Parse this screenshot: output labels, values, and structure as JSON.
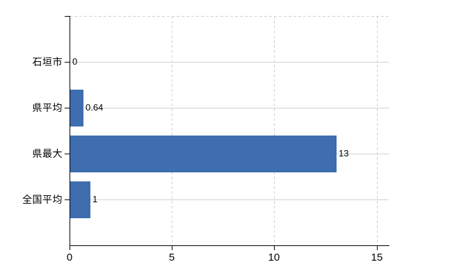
{
  "chart_data": {
    "type": "bar",
    "orientation": "horizontal",
    "title": "",
    "xlabel": "",
    "ylabel": "",
    "categories": [
      "石垣市",
      "県平均",
      "県最大",
      "全国平均"
    ],
    "values": [
      0,
      0.64,
      13,
      1
    ],
    "value_labels": [
      "0",
      "0.64",
      "13",
      "1"
    ],
    "x_tick_labels": [
      "0",
      "5",
      "10",
      "15"
    ],
    "x_tick_values": [
      0,
      5,
      10,
      15
    ],
    "xlim": [
      0,
      15.6
    ],
    "grid": "vertical dashed at ticks, horizontal solid at category centers",
    "legend_position": "none",
    "colors": {
      "bar": "#3e6db0",
      "axis": "#000000",
      "grid_dashed": "#d8cdd6",
      "grid_solid": "#cdd5c9",
      "text": "#000000",
      "background": "#ffffff"
    }
  }
}
